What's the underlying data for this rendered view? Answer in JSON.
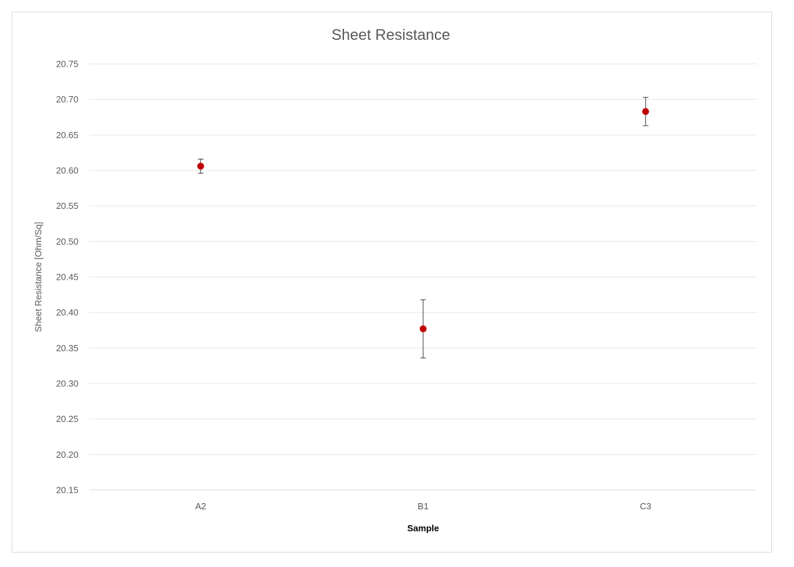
{
  "chart_data": {
    "type": "scatter",
    "title": "Sheet Resistance",
    "xlabel": "Sample",
    "ylabel": "Sheet Resistance [Ohm/Sq]",
    "categories": [
      "A2",
      "B1",
      "C3"
    ],
    "series": [
      {
        "values": [
          20.606,
          20.377,
          20.683
        ],
        "error": [
          0.01,
          0.041,
          0.02
        ],
        "color": "#c00000"
      }
    ],
    "ylim": [
      20.15,
      20.75
    ],
    "yticks": [
      "20.75",
      "20.70",
      "20.65",
      "20.60",
      "20.55",
      "20.50",
      "20.45",
      "20.40",
      "20.35",
      "20.30",
      "20.25",
      "20.20",
      "20.15"
    ],
    "grid": true,
    "legend": "none"
  }
}
